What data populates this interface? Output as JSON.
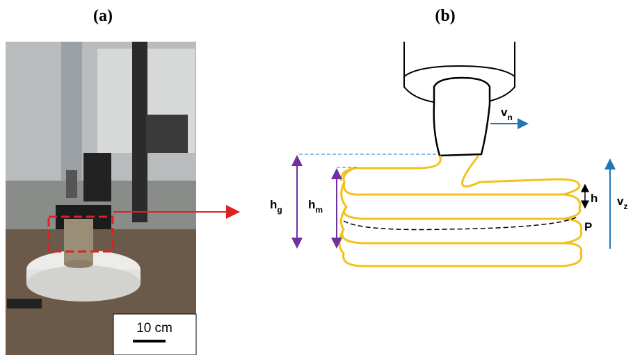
{
  "panels": [
    {
      "label": "(a)",
      "scale_bar": "10 cm"
    },
    {
      "label": "(b)",
      "annotations": {
        "hg": {
          "symbol": "h",
          "subscript": "g"
        },
        "hm": {
          "symbol": "h",
          "subscript": "m"
        },
        "h": {
          "symbol": "h"
        },
        "vz": {
          "symbol": "v",
          "subscript": "z"
        },
        "vn": {
          "symbol": "v",
          "subscript": "n"
        },
        "p": {
          "symbol": "P"
        }
      }
    }
  ]
}
